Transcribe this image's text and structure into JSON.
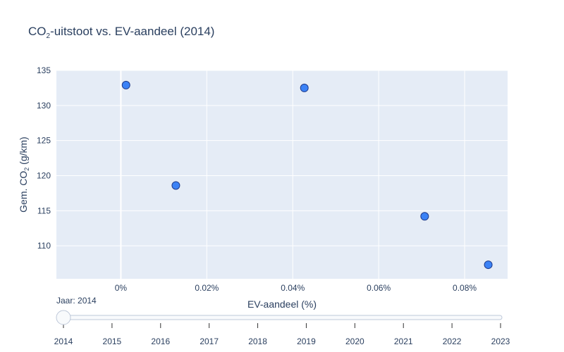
{
  "chart_data": {
    "type": "scatter",
    "title_main": "CO",
    "title_sub": "2",
    "title_rest": "-uitstoot vs. EV-aandeel (2014)",
    "xlabel": "EV-aandeel (%)",
    "ylabel_main": "Gem. CO",
    "ylabel_sub": "2",
    "ylabel_rest": " (g/km)",
    "xlim": [
      -0.00015,
      0.0009
    ],
    "ylim": [
      105.3,
      135
    ],
    "x_ticks": [
      {
        "value": 0,
        "label": "0%"
      },
      {
        "value": 0.0002,
        "label": "0.02%"
      },
      {
        "value": 0.0004,
        "label": "0.04%"
      },
      {
        "value": 0.0006,
        "label": "0.06%"
      },
      {
        "value": 0.0008,
        "label": "0.08%"
      }
    ],
    "y_ticks": [
      {
        "value": 110,
        "label": "110"
      },
      {
        "value": 115,
        "label": "115"
      },
      {
        "value": 120,
        "label": "120"
      },
      {
        "value": 125,
        "label": "125"
      },
      {
        "value": 130,
        "label": "130"
      },
      {
        "value": 135,
        "label": "135"
      }
    ],
    "points": [
      {
        "x": 1.2e-05,
        "y": 132.9
      },
      {
        "x": 0.000128,
        "y": 118.6
      },
      {
        "x": 0.000427,
        "y": 132.5
      },
      {
        "x": 0.000707,
        "y": 114.2
      },
      {
        "x": 0.000855,
        "y": 107.3
      }
    ],
    "grid": true,
    "colors": {
      "plot_bg": "#e5ecf6",
      "grid": "#ffffff",
      "marker_fill": "#3b82f6",
      "marker_stroke": "#1e3a8a",
      "text": "#2a3f5f"
    }
  },
  "slider": {
    "prefix": "Jaar: ",
    "current": "2014",
    "steps": [
      "2014",
      "2015",
      "2016",
      "2017",
      "2018",
      "2019",
      "2020",
      "2021",
      "2022",
      "2023"
    ],
    "active_index": 0
  }
}
